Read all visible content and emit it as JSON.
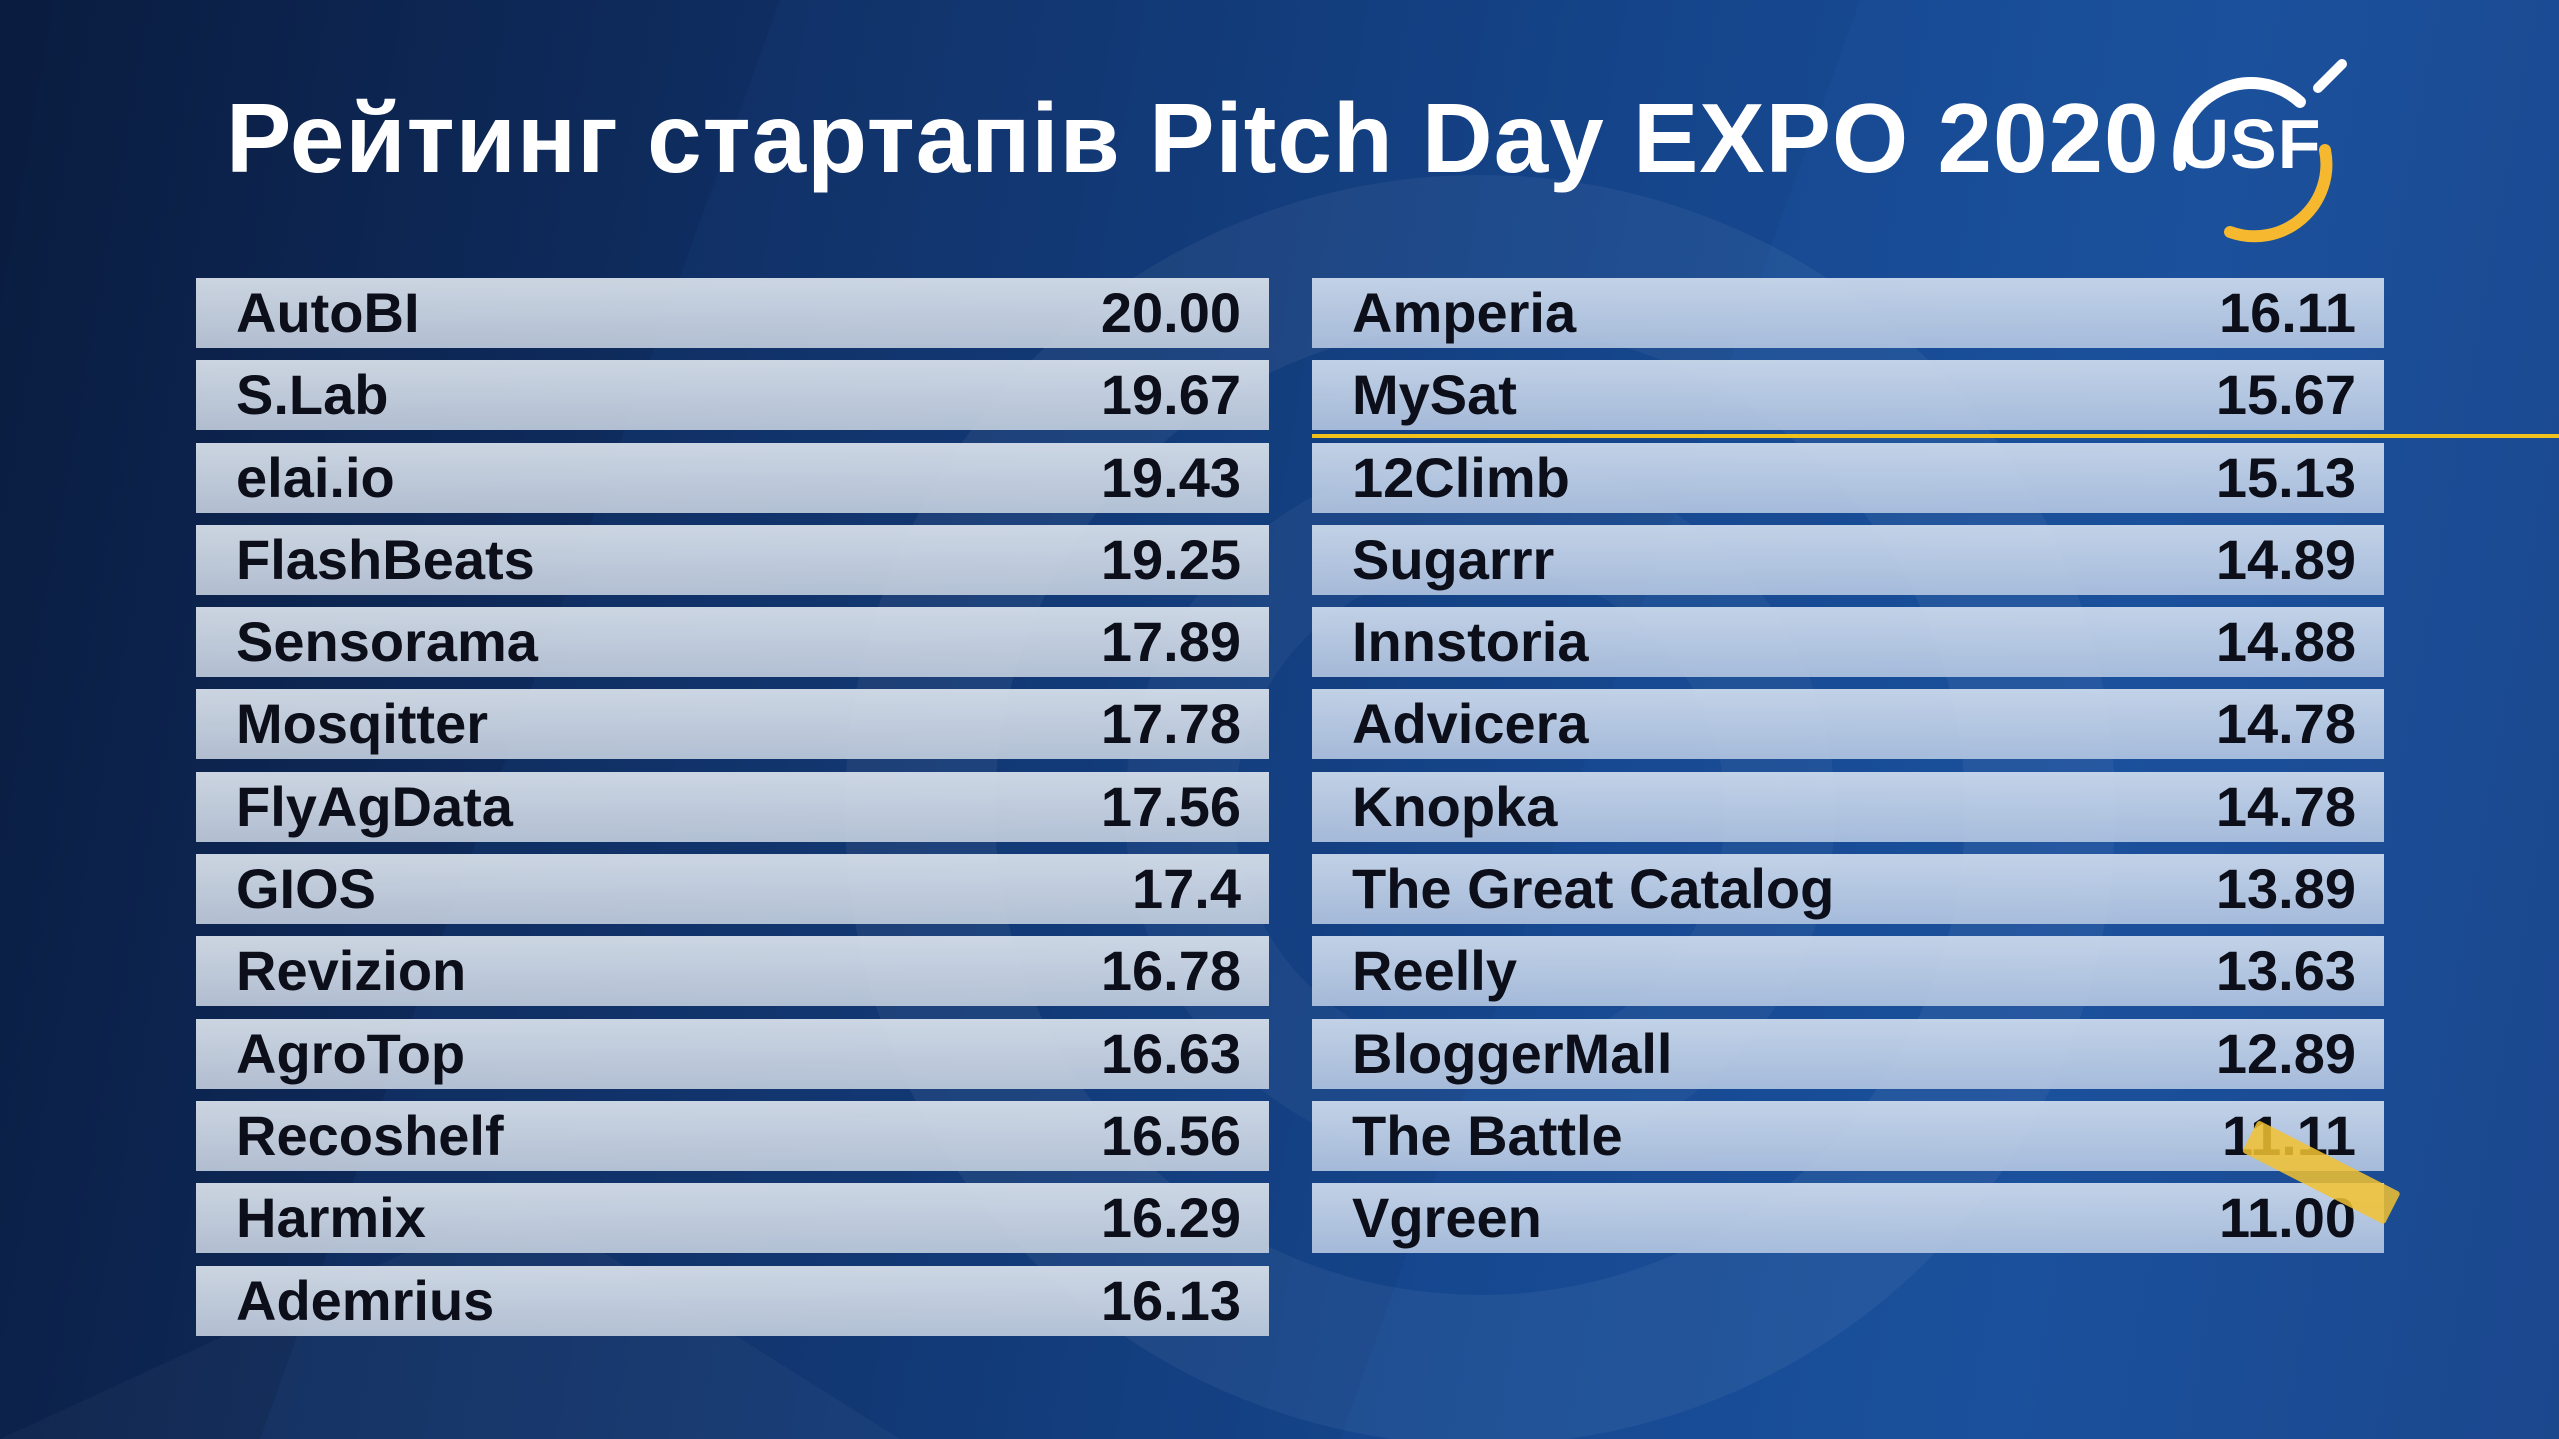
{
  "title": "Рейтинг стартапів Pitch Day EXPO 2020",
  "logo": {
    "text": "USF",
    "ring_color": "#ffffff",
    "accent_color": "#f5b82e"
  },
  "colors": {
    "background_dark": "#0a1c3f",
    "background_light": "#1a4f9a",
    "accent_line": "#f0c21b",
    "row_fill": "#d3dce8",
    "text": "#0c0f1a"
  },
  "left_column": [
    {
      "name": "AutoBI",
      "score": "20.00"
    },
    {
      "name": "S.Lab",
      "score": "19.67"
    },
    {
      "name": "elai.io",
      "score": "19.43"
    },
    {
      "name": "FlashBeats",
      "score": "19.25"
    },
    {
      "name": "Sensorama",
      "score": "17.89"
    },
    {
      "name": "Mosqitter",
      "score": "17.78"
    },
    {
      "name": "FlyAgData",
      "score": "17.56"
    },
    {
      "name": "GIOS",
      "score": "17.4"
    },
    {
      "name": "Revizion",
      "score": "16.78"
    },
    {
      "name": "AgroTop",
      "score": "16.63"
    },
    {
      "name": "Recoshelf",
      "score": "16.56"
    },
    {
      "name": "Harmix",
      "score": "16.29"
    },
    {
      "name": "Ademrius",
      "score": "16.13"
    }
  ],
  "right_column": [
    {
      "name": "Amperia",
      "score": "16.11"
    },
    {
      "name": "MySat",
      "score": "15.67"
    },
    {
      "name": "12Climb",
      "score": "15.13"
    },
    {
      "name": "Sugarrr",
      "score": "14.89"
    },
    {
      "name": "Innstoria",
      "score": "14.88"
    },
    {
      "name": "Advicera",
      "score": "14.78"
    },
    {
      "name": "Knopka",
      "score": "14.78"
    },
    {
      "name": "The Great Catalog",
      "score": "13.89"
    },
    {
      "name": "Reelly",
      "score": "13.63"
    },
    {
      "name": "BloggerMall",
      "score": "12.89"
    },
    {
      "name": "The Battle",
      "score": "11.11"
    },
    {
      "name": "Vgreen",
      "score": "11.00"
    }
  ]
}
